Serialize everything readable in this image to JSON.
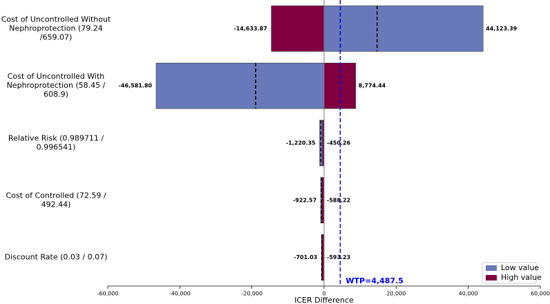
{
  "chart_data": {
    "type": "tornado",
    "categories": [
      "Cost of Uncontrolled Without\nNephroprotection (79.24\n/659.07)",
      "Cost of Uncontrolled With\nNephroprotection (58.45 /\n608.9)",
      "Relative Risk (0.989711 /\n0.996541)",
      "Cost of Controlled (72.59 /\n492.44)",
      "Discount Rate (0.03 / 0.07)"
    ],
    "series": [
      {
        "name": "Low value",
        "color": "#6878b8",
        "values": [
          44123.39,
          -46581.8,
          -1220.35,
          -922.57,
          -701.03
        ],
        "value_labels": [
          "44,123.39",
          "-46,581.80",
          "-1,220.35",
          "-922.57",
          "-701.03"
        ]
      },
      {
        "name": "High value",
        "color": "#800040",
        "values": [
          -14633.87,
          8774.44,
          -450.26,
          -588.22,
          -593.23
        ],
        "value_labels": [
          "-14,633.87",
          "8,774.44",
          "-450.26",
          "-588.22",
          "-593.23"
        ]
      }
    ],
    "dashed_values": [
      14700,
      -19000,
      -900,
      -800,
      -650
    ],
    "annotation": {
      "text": "WTP=4,487.5",
      "value": 4487.5,
      "color": "#0000ee"
    },
    "xlabel": "ICER Difference",
    "xlim": [
      -60000,
      60000
    ],
    "xticks": [
      {
        "value": -60000,
        "label": "-60,000"
      },
      {
        "value": -40000,
        "label": "-40,000"
      },
      {
        "value": -20000,
        "label": "-20,000"
      },
      0,
      {
        "value": 20000,
        "label": "20,000"
      },
      {
        "value": 40000,
        "label": "40,000"
      },
      {
        "value": 60000,
        "label": "60,000"
      }
    ],
    "legend": "lower right"
  }
}
